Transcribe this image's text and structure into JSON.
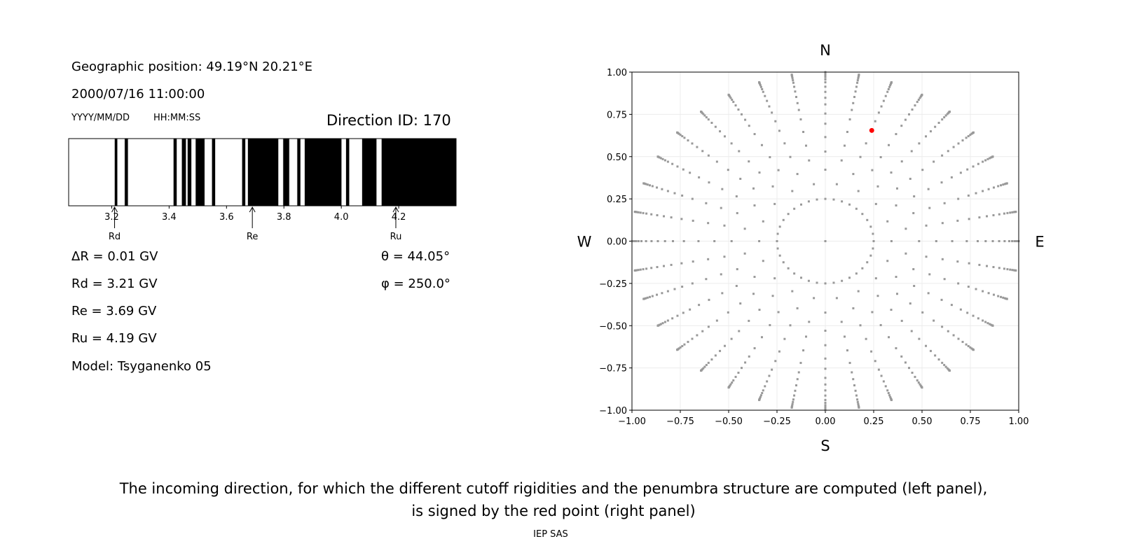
{
  "left_panel": {
    "position_line": "Geographic position: 49.19°N 20.21°E",
    "datetime_line": "2000/07/16 11:00:00",
    "date_format": "YYYY/MM/DD",
    "time_format": "HH:MM:SS",
    "direction_id": "Direction ID: 170",
    "delta_r": "ΔR = 0.01 GV",
    "rd": "Rd = 3.21 GV",
    "re": "Re = 3.69 GV",
    "ru": "Ru = 4.19 GV",
    "model": "Model: Tsyganenko 05",
    "theta": "θ = 44.05°",
    "phi": "φ = 250.0°"
  },
  "caption": {
    "line1": "The incoming direction, for which the different cutoff rigidities and the penumbra structure are computed (left panel),",
    "line2": "is signed by the red point (right panel)",
    "footer": "IEP SAS"
  },
  "chart_data": [
    {
      "type": "penumbra-bar",
      "xlim": [
        3.05,
        4.4
      ],
      "xticks": [
        3.2,
        3.4,
        3.6,
        3.8,
        4.0,
        4.2
      ],
      "xtick_labels": [
        "3.2",
        "3.4",
        "3.6",
        "3.8",
        "4.0",
        "4.2"
      ],
      "forbidden_bands_gv": [
        [
          3.21,
          3.22
        ],
        [
          3.245,
          3.257
        ],
        [
          3.415,
          3.427
        ],
        [
          3.444,
          3.459
        ],
        [
          3.464,
          3.478
        ],
        [
          3.492,
          3.524
        ],
        [
          3.549,
          3.561
        ],
        [
          3.654,
          3.666
        ],
        [
          3.674,
          3.781
        ],
        [
          3.797,
          3.819
        ],
        [
          3.846,
          3.858
        ],
        [
          3.872,
          4.001
        ],
        [
          4.016,
          4.028
        ],
        [
          4.072,
          4.123
        ],
        [
          4.14,
          4.4
        ]
      ],
      "annotations": [
        {
          "label": "Rd",
          "x": 3.21
        },
        {
          "label": "Re",
          "x": 3.69
        },
        {
          "label": "Ru",
          "x": 4.19
        }
      ],
      "colors": {
        "forbidden": "#000000",
        "allowed": "#ffffff"
      }
    },
    {
      "type": "scatter",
      "xlim": [
        -1,
        1
      ],
      "ylim": [
        -1,
        1
      ],
      "ticks": [
        -1,
        -0.75,
        -0.5,
        -0.25,
        0,
        0.25,
        0.5,
        0.75,
        1
      ],
      "tick_labels": [
        "−1.00",
        "−0.75",
        "−0.50",
        "−0.25",
        "0.00",
        "0.25",
        "0.50",
        "0.75",
        "1.00"
      ],
      "grid": true,
      "directions": {
        "north": "N",
        "south": "S",
        "west": "W",
        "east": "E"
      },
      "grid_points": {
        "azimuth_step_deg": 10,
        "inner_ring_radius": 0.25,
        "inner_ring_count": 36,
        "zenith_deg_even_spokes": [
          25,
          32,
          38,
          44,
          49,
          54,
          58,
          62,
          66,
          70,
          73,
          76,
          79,
          82,
          85,
          88,
          90
        ],
        "zenith_deg_odd_spokes": [
          20,
          29,
          35,
          41,
          47,
          52,
          56,
          60,
          64,
          68,
          72,
          75,
          78,
          81,
          84,
          87,
          90
        ]
      },
      "highlight_point": {
        "x": 0.24,
        "y": 0.655
      },
      "colors": {
        "points": "#999999",
        "highlight": "#ff0000",
        "grid": "#ececec"
      }
    }
  ]
}
